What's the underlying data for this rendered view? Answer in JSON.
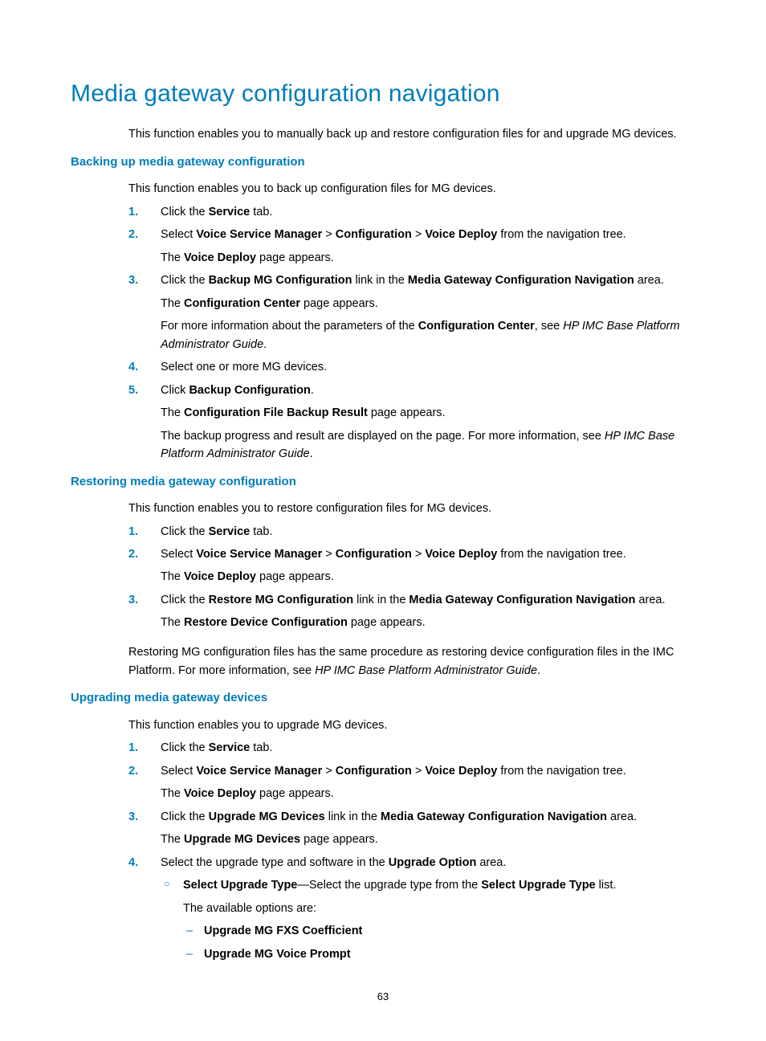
{
  "colors": {
    "accent": "#007dba",
    "text": "#000000",
    "bg": "#ffffff"
  },
  "title": "Media gateway configuration navigation",
  "intro": "This function enables you to manually back up and restore configuration files for and upgrade MG devices.",
  "page_number": "63",
  "sections": [
    {
      "heading": "Backing up media gateway configuration",
      "intro": "This function enables you to back up configuration files for MG devices.",
      "steps": [
        {
          "html": "Click the <b>Service</b> tab."
        },
        {
          "html": "Select <b>Voice Service Manager</b> &gt; <b>Configuration</b> &gt; <b>Voice Deploy</b> from the navigation tree.",
          "subs": [
            "The <b>Voice Deploy</b> page appears."
          ]
        },
        {
          "html": "Click the <b>Backup MG Configuration</b> link in the <b>Media Gateway Configuration Navigation</b> area.",
          "subs": [
            "The <b>Configuration Center</b> page appears.",
            "For more information about the parameters of the <b>Configuration Center</b>, see <i>HP IMC Base Platform Administrator Guide</i>."
          ]
        },
        {
          "html": "Select one or more MG devices."
        },
        {
          "html": "Click <b>Backup Configuration</b>.",
          "subs": [
            "The <b>Configuration File Backup Result</b> page appears.",
            "The backup progress and result are displayed on the page. For more information, see <i>HP IMC Base Platform Administrator Guide</i>."
          ]
        }
      ]
    },
    {
      "heading": "Restoring media gateway configuration",
      "intro": "This function enables you to restore configuration files for MG devices.",
      "steps": [
        {
          "html": "Click the <b>Service</b> tab."
        },
        {
          "html": "Select <b>Voice Service Manager</b> &gt; <b>Configuration</b> &gt; <b>Voice Deploy</b> from the navigation tree.",
          "subs": [
            "The <b>Voice Deploy</b> page appears."
          ]
        },
        {
          "html": "Click the <b>Restore MG Configuration</b> link in the <b>Media Gateway Configuration Navigation</b> area.",
          "subs": [
            "The <b>Restore Device Configuration</b> page appears."
          ]
        }
      ],
      "after": "Restoring MG configuration files has the same procedure as restoring device configuration files in the IMC Platform. For more information, see <i>HP IMC Base Platform Administrator Guide</i>."
    },
    {
      "heading": "Upgrading media gateway devices",
      "intro": "This function enables you to upgrade MG devices.",
      "steps": [
        {
          "html": "Click the <b>Service</b> tab."
        },
        {
          "html": "Select <b>Voice Service Manager</b> &gt; <b>Configuration</b> &gt; <b>Voice Deploy</b> from the navigation tree.",
          "subs": [
            "The <b>Voice Deploy</b> page appears."
          ]
        },
        {
          "html": "Click the <b>Upgrade MG Devices</b> link in the <b>Media Gateway Configuration Navigation</b> area.",
          "subs": [
            "The <b>Upgrade MG Devices</b> page appears."
          ]
        },
        {
          "html": "Select the upgrade type and software in the <b>Upgrade Option</b> area.",
          "bullets": [
            {
              "html": "<b>Select Upgrade Type</b>—Select the upgrade type from the <b>Select Upgrade Type</b> list.",
              "subs": [
                "The available options are:"
              ],
              "dashes": [
                "<b>Upgrade MG FXS Coefficient</b>",
                "<b>Upgrade MG Voice Prompt</b>"
              ]
            }
          ]
        }
      ]
    }
  ]
}
